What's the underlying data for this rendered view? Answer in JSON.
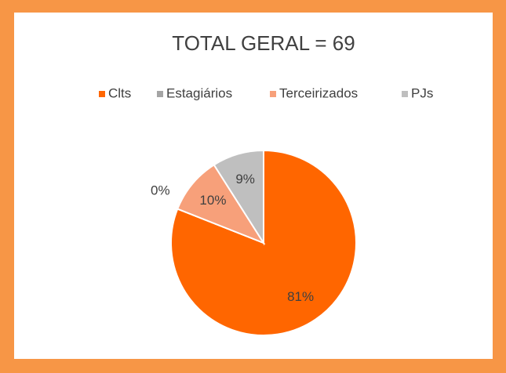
{
  "chart_data": {
    "type": "pie",
    "title": "TOTAL GERAL = 69",
    "categories": [
      "Clts",
      "Estagiários",
      "Terceirizados",
      "PJs"
    ],
    "values": [
      81,
      0,
      10,
      9
    ],
    "value_labels": [
      "81%",
      "0%",
      "10%",
      "9%"
    ],
    "colors": [
      "#ff6600",
      "#a5a5a5",
      "#f7a07a",
      "#bfbfbf"
    ],
    "legend": "top"
  }
}
